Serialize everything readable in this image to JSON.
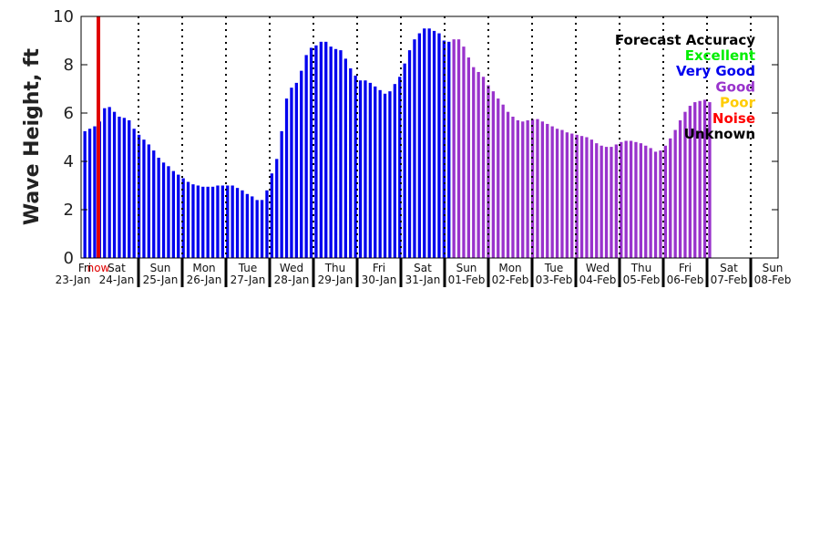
{
  "chart_data": {
    "type": "bar",
    "ylabel": "Wave Height, ft",
    "ylim": [
      0,
      10
    ],
    "yticks": [
      0,
      2,
      4,
      6,
      8,
      10
    ],
    "now_label": "now",
    "now_color": "#e00000",
    "days": [
      {
        "dow": "Fri",
        "date": "23-Jan"
      },
      {
        "dow": "Sat",
        "date": "24-Jan"
      },
      {
        "dow": "Sun",
        "date": "25-Jan"
      },
      {
        "dow": "Mon",
        "date": "26-Jan"
      },
      {
        "dow": "Tue",
        "date": "27-Jan"
      },
      {
        "dow": "Wed",
        "date": "28-Jan"
      },
      {
        "dow": "Thu",
        "date": "29-Jan"
      },
      {
        "dow": "Fri",
        "date": "30-Jan"
      },
      {
        "dow": "Sat",
        "date": "31-Jan"
      },
      {
        "dow": "Sun",
        "date": "01-Feb"
      },
      {
        "dow": "Mon",
        "date": "02-Feb"
      },
      {
        "dow": "Tue",
        "date": "03-Feb"
      },
      {
        "dow": "Wed",
        "date": "04-Feb"
      },
      {
        "dow": "Thu",
        "date": "05-Feb"
      },
      {
        "dow": "Fri",
        "date": "06-Feb"
      },
      {
        "dow": "Sat",
        "date": "07-Feb"
      },
      {
        "dow": "Sun",
        "date": "08-Feb"
      }
    ],
    "legend": {
      "title": "Forecast Accuracy",
      "placement": "top-right",
      "entries": [
        {
          "name": "Excellent",
          "color": "#00ee00"
        },
        {
          "name": "Very Good",
          "color": "#0000ee"
        },
        {
          "name": "Good",
          "color": "#9933cc"
        },
        {
          "name": "Poor",
          "color": "#ffcc00"
        },
        {
          "name": "Noise",
          "color": "#ff0000"
        },
        {
          "name": "Unknown",
          "color": "#000000"
        }
      ]
    },
    "series": [
      {
        "accuracy": "Very Good",
        "color": "#0000ee",
        "values": [
          5.25,
          5.35,
          5.45,
          5.65,
          6.2,
          6.25,
          6.05,
          5.85,
          5.8,
          5.7,
          5.35,
          5.1,
          4.9,
          4.7,
          4.45,
          4.15,
          3.95,
          3.8,
          3.6,
          3.45,
          3.3,
          3.15,
          3.05,
          3.0,
          2.95,
          2.95,
          2.95,
          3.0,
          3.0,
          3.0,
          3.0,
          2.9,
          2.8,
          2.65,
          2.55,
          2.4,
          2.4,
          2.8,
          3.5,
          4.1,
          5.25,
          6.6,
          7.05,
          7.25,
          7.75,
          8.4,
          8.7,
          8.8,
          8.95,
          8.95,
          8.75,
          8.65,
          8.6,
          8.25,
          7.85,
          7.55,
          7.35,
          7.35,
          7.25,
          7.1,
          6.95,
          6.8,
          6.9,
          7.2,
          7.5,
          8.05,
          8.6,
          9.05,
          9.3,
          9.5,
          9.5,
          9.4,
          9.3,
          9.0,
          8.95
        ]
      },
      {
        "accuracy": "Good",
        "color": "#9933cc",
        "values": [
          9.05,
          9.05,
          8.75,
          8.3,
          7.9,
          7.7,
          7.5,
          7.15,
          6.9,
          6.6,
          6.35,
          6.05,
          5.85,
          5.7,
          5.65,
          5.7,
          5.75,
          5.75,
          5.65,
          5.55,
          5.45,
          5.35,
          5.3,
          5.2,
          5.15,
          5.1,
          5.05,
          5.0,
          4.9,
          4.75,
          4.65,
          4.6,
          4.6,
          4.7,
          4.8,
          4.85,
          4.85,
          4.8,
          4.75,
          4.65,
          4.55,
          4.4,
          4.45,
          4.65,
          4.95,
          5.3,
          5.7,
          6.05,
          6.3,
          6.45,
          6.5,
          6.55,
          6.45
        ]
      }
    ]
  }
}
